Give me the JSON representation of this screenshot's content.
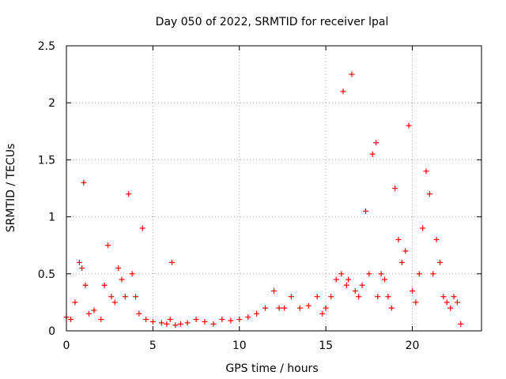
{
  "chart_data": {
    "type": "scatter",
    "title": "Day 050 of 2022, SRMTID for receiver lpal",
    "xlabel": "GPS time / hours",
    "ylabel": "SRMTID / TECUs",
    "xlim": [
      0,
      24
    ],
    "ylim": [
      0,
      2.5
    ],
    "grid": true,
    "marker": "+",
    "x_ticks": [
      0,
      5,
      10,
      15,
      20
    ],
    "x_tick_labels": [
      "0",
      "5",
      "10",
      "15",
      "20"
    ],
    "y_ticks": [
      0,
      0.5,
      1,
      1.5,
      2,
      2.5
    ],
    "y_tick_labels": [
      "0",
      "0.5",
      "1",
      "1.5",
      "2",
      "2.5"
    ],
    "series": [
      {
        "name": "SRMTID",
        "color": "#ff0000",
        "description": "approximate envelope of the scattered SRMTID values read from the plot",
        "x": [
          0.0,
          0.25,
          0.5,
          0.75,
          0.9,
          1.0,
          1.1,
          1.3,
          1.6,
          2.0,
          2.2,
          2.4,
          2.6,
          2.8,
          3.0,
          3.2,
          3.4,
          3.6,
          3.8,
          4.0,
          4.2,
          4.4,
          4.6,
          5.0,
          5.5,
          5.8,
          6.0,
          6.1,
          6.3,
          6.6,
          7.0,
          7.5,
          8.0,
          8.5,
          9.0,
          9.5,
          10.0,
          10.5,
          11.0,
          11.5,
          12.0,
          12.3,
          12.6,
          13.0,
          13.5,
          14.0,
          14.5,
          14.8,
          15.0,
          15.3,
          15.6,
          15.9,
          16.0,
          16.2,
          16.3,
          16.5,
          16.7,
          16.9,
          17.1,
          17.3,
          17.5,
          17.7,
          17.9,
          18.0,
          18.2,
          18.4,
          18.6,
          18.8,
          19.0,
          19.2,
          19.4,
          19.6,
          19.8,
          20.0,
          20.2,
          20.4,
          20.6,
          20.8,
          21.0,
          21.2,
          21.4,
          21.6,
          21.8,
          22.0,
          22.2,
          22.4,
          22.6,
          22.8
        ],
        "values": [
          0.12,
          0.1,
          0.25,
          0.6,
          0.55,
          1.3,
          0.4,
          0.15,
          0.18,
          0.1,
          0.4,
          0.75,
          0.3,
          0.25,
          0.55,
          0.45,
          0.3,
          1.2,
          0.5,
          0.3,
          0.15,
          0.9,
          0.1,
          0.08,
          0.07,
          0.06,
          0.1,
          0.6,
          0.05,
          0.06,
          0.07,
          0.1,
          0.08,
          0.06,
          0.1,
          0.09,
          0.1,
          0.12,
          0.15,
          0.2,
          0.35,
          0.2,
          0.2,
          0.3,
          0.2,
          0.22,
          0.3,
          0.15,
          0.2,
          0.3,
          0.45,
          0.5,
          2.1,
          0.4,
          0.45,
          2.25,
          0.35,
          0.3,
          0.4,
          1.05,
          0.5,
          1.55,
          1.65,
          0.3,
          0.5,
          0.45,
          0.3,
          0.2,
          1.25,
          0.8,
          0.6,
          0.7,
          1.8,
          0.35,
          0.25,
          0.5,
          0.9,
          1.4,
          1.2,
          0.5,
          0.8,
          0.6,
          0.3,
          0.25,
          0.2,
          0.3,
          0.25,
          0.06
        ]
      }
    ]
  }
}
